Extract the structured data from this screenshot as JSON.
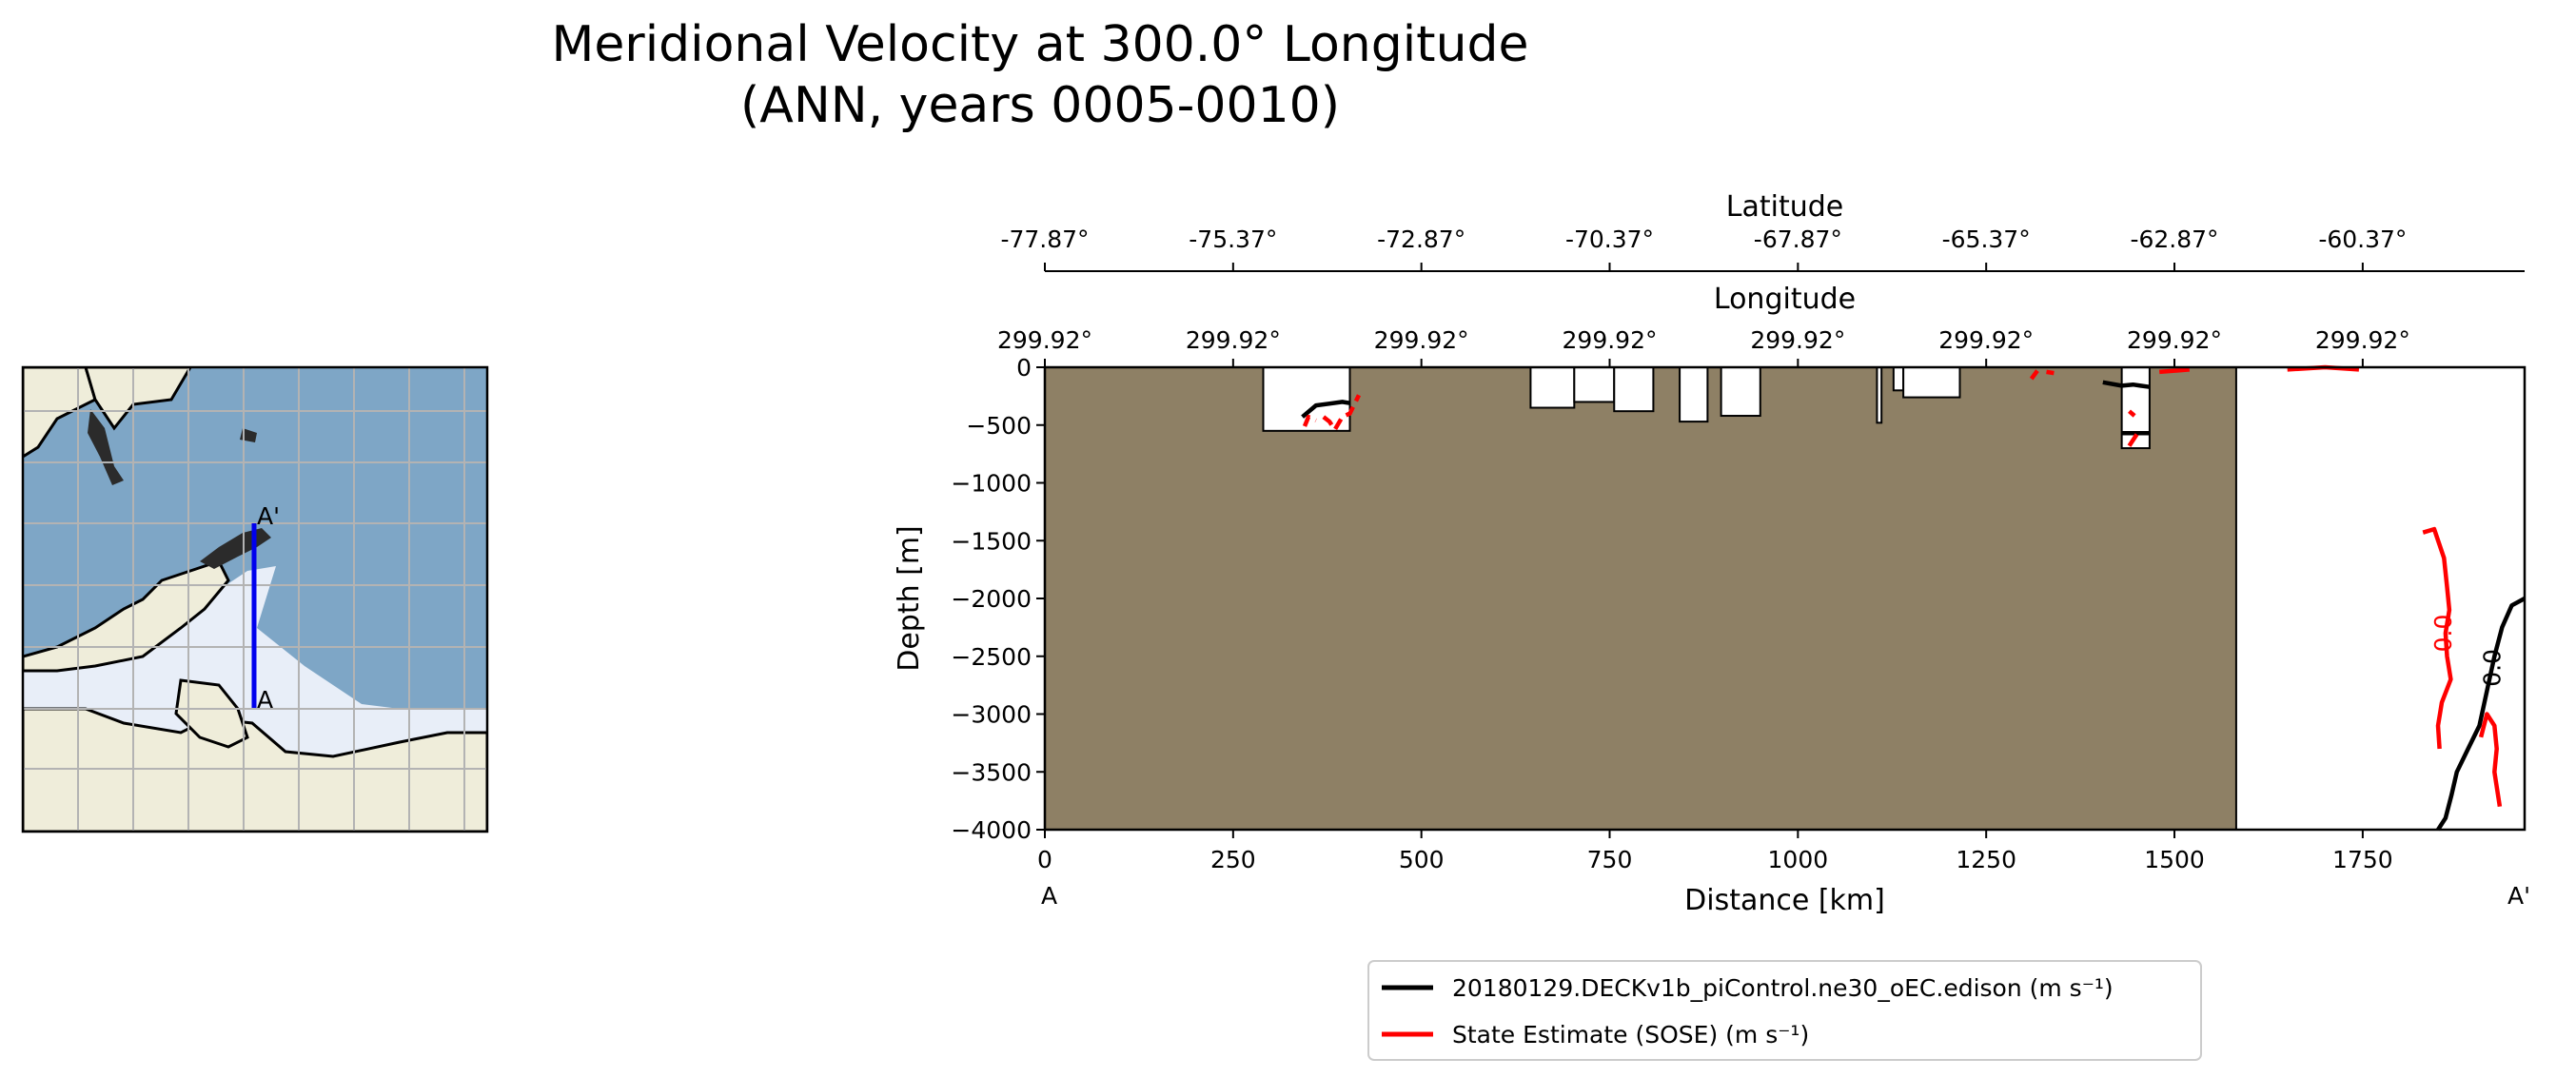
{
  "chart_data": {
    "type": "contour-section",
    "title": [
      "Meridional Velocity at 300.0° Longitude",
      "(ANN, years 0005-0010)"
    ],
    "xlabel": "Distance [km]",
    "ylabel": "Depth [m]",
    "xlim": [
      0,
      1965
    ],
    "ylim": [
      -4000,
      0
    ],
    "x_ticks": [
      0,
      250,
      500,
      750,
      1000,
      1250,
      1500,
      1750
    ],
    "y_ticks": [
      0,
      -500,
      -1000,
      -1500,
      -2000,
      -2500,
      -3000,
      -3500,
      -4000
    ],
    "x_tick_labels": [
      "0",
      "250",
      "500",
      "750",
      "1000",
      "1250",
      "1500",
      "1750"
    ],
    "y_tick_labels": [
      "0",
      "−500",
      "−1000",
      "−1500",
      "−2000",
      "−2500",
      "−3000",
      "−3500",
      "−4000"
    ],
    "section_ends": {
      "start": "A",
      "end": "A'"
    },
    "latitude_axis": {
      "label": "Latitude",
      "tick_distances": [
        0,
        250,
        500,
        750,
        1000,
        1250,
        1500,
        1750
      ],
      "tick_labels": [
        "-77.87°",
        "-75.37°",
        "-72.87°",
        "-70.37°",
        "-67.87°",
        "-65.37°",
        "-62.87°",
        "-60.37°"
      ]
    },
    "longitude_axis": {
      "label": "Longitude",
      "tick_distances": [
        0,
        250,
        500,
        750,
        1000,
        1250,
        1500,
        1750
      ],
      "tick_labels": [
        "299.92°",
        "299.92°",
        "299.92°",
        "299.92°",
        "299.92°",
        "299.92°",
        "299.92°",
        "299.92°"
      ]
    },
    "land_color": "#8e8065",
    "ocean_regions": [
      {
        "x0": 290,
        "x1": 405,
        "depth": 550
      },
      {
        "x0": 645,
        "x1": 703,
        "depth": 350
      },
      {
        "x0": 703,
        "x1": 756,
        "depth": 300
      },
      {
        "x0": 756,
        "x1": 808,
        "depth": 380
      },
      {
        "x0": 843,
        "x1": 880,
        "depth": 470
      },
      {
        "x0": 898,
        "x1": 950,
        "depth": 420
      },
      {
        "x0": 1105,
        "x1": 1111,
        "depth": 480
      },
      {
        "x0": 1127,
        "x1": 1140,
        "depth": 200
      },
      {
        "x0": 1140,
        "x1": 1215,
        "depth": 260
      },
      {
        "x0": 1430,
        "x1": 1467,
        "depth": 700
      },
      {
        "x0": 1582,
        "x1": 1965,
        "depth": 4000
      }
    ],
    "series": [
      {
        "name": "20180129.DECKv1b_piControl.ne30_oEC.edison",
        "units": "m s⁻¹",
        "color": "#000000",
        "contour_level": 0.0,
        "contour_label": "0.0",
        "label_at": [
          1933,
          -2600
        ],
        "paths": [
          [
            [
              342,
              -430
            ],
            [
              360,
              -330
            ],
            [
              395,
              -300
            ],
            [
              405,
              -310
            ]
          ],
          [
            [
              1405,
              -130
            ],
            [
              1430,
              -160
            ],
            [
              1445,
              -150
            ],
            [
              1455,
              -160
            ],
            [
              1467,
              -170
            ]
          ],
          [
            [
              1430,
              -570
            ],
            [
              1467,
              -570
            ]
          ],
          [
            [
              1965,
              -2000
            ],
            [
              1948,
              -2060
            ],
            [
              1935,
              -2250
            ],
            [
              1925,
              -2500
            ],
            [
              1915,
              -2800
            ],
            [
              1905,
              -3100
            ],
            [
              1890,
              -3300
            ],
            [
              1875,
              -3500
            ],
            [
              1868,
              -3700
            ],
            [
              1860,
              -3900
            ],
            [
              1850,
              -4000
            ]
          ]
        ]
      },
      {
        "name": "State Estimate (SOSE)",
        "units": "m s⁻¹",
        "color": "#ff0000",
        "contour_level": 0.0,
        "contour_label": "0.0",
        "label_at": [
          1868,
          -2300
        ],
        "paths": [
          [
            [
              345,
              -510
            ],
            [
              350,
              -430
            ],
            [
              360,
              -460
            ]
          ],
          [
            [
              370,
              -430
            ],
            [
              378,
              -470
            ],
            [
              385,
              -540
            ],
            [
              395,
              -430
            ],
            [
              405,
              -400
            ],
            [
              417,
              -240
            ]
          ],
          [
            [
              1310,
              -100
            ],
            [
              1318,
              -30
            ]
          ],
          [
            [
              1330,
              -40
            ],
            [
              1340,
              -50
            ]
          ],
          [
            [
              1480,
              -40
            ],
            [
              1520,
              -20
            ]
          ],
          [
            [
              1650,
              -20
            ],
            [
              1700,
              0
            ],
            [
              1745,
              -20
            ]
          ],
          [
            [
              1440,
              -380
            ],
            [
              1447,
              -420
            ]
          ],
          [
            [
              1440,
              -680
            ],
            [
              1450,
              -580
            ]
          ],
          [
            [
              1830,
              -1430
            ],
            [
              1845,
              -1400
            ],
            [
              1858,
              -1650
            ],
            [
              1862,
              -1900
            ],
            [
              1865,
              -2100
            ],
            [
              1860,
              -2300
            ],
            [
              1862,
              -2500
            ],
            [
              1867,
              -2700
            ],
            [
              1855,
              -2900
            ],
            [
              1850,
              -3100
            ],
            [
              1852,
              -3300
            ]
          ],
          [
            [
              1907,
              -3200
            ],
            [
              1915,
              -3000
            ],
            [
              1925,
              -3100
            ],
            [
              1928,
              -3300
            ],
            [
              1925,
              -3500
            ],
            [
              1932,
              -3800
            ]
          ]
        ]
      }
    ],
    "legend": {
      "placement": "bottom-center",
      "entries": [
        {
          "text": "20180129.DECKv1b_piControl.ne30_oEC.edison (m s⁻¹)",
          "color": "#000000"
        },
        {
          "text": "State Estimate (SOSE) (m s⁻¹)",
          "color": "#ff0000"
        }
      ]
    },
    "inset_map": {
      "description_label": "transect map",
      "transect_start": "A",
      "transect_end": "A'",
      "land_color": "#efedda",
      "ocean_color": "#7ea6c6",
      "ice_color": "#e8eef8",
      "transect_color": "#0000ee"
    }
  }
}
